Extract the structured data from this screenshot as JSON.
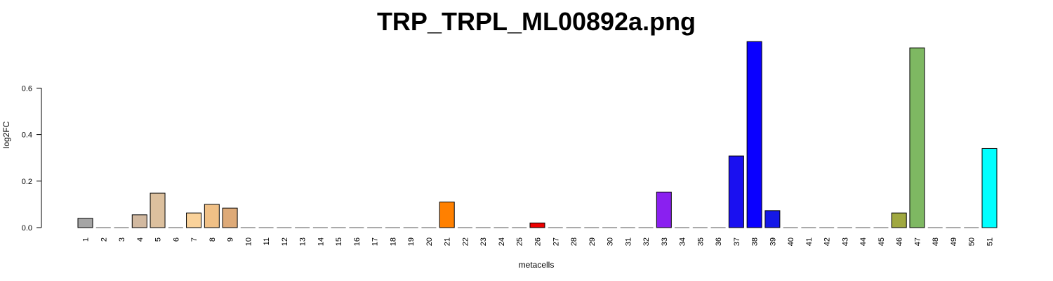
{
  "chart_data": {
    "type": "bar",
    "title": "TRP_TRPL_ML00892a.png",
    "xlabel": "metacells",
    "ylabel": "log2FC",
    "ylim": [
      0,
      0.8
    ],
    "yticks": [
      "0.0",
      "0.2",
      "0.4",
      "0.6"
    ],
    "ytick_values": [
      0,
      0.2,
      0.4,
      0.6
    ],
    "grid": false,
    "categories": [
      "1",
      "2",
      "3",
      "4",
      "5",
      "6",
      "7",
      "8",
      "9",
      "10",
      "11",
      "12",
      "13",
      "14",
      "15",
      "16",
      "17",
      "18",
      "19",
      "20",
      "21",
      "22",
      "23",
      "24",
      "25",
      "26",
      "27",
      "28",
      "29",
      "30",
      "31",
      "32",
      "33",
      "34",
      "35",
      "36",
      "37",
      "38",
      "39",
      "40",
      "41",
      "42",
      "43",
      "44",
      "45",
      "46",
      "47",
      "48",
      "49",
      "50",
      "51"
    ],
    "values": [
      0.04,
      0,
      0,
      0.055,
      0.148,
      0,
      0.063,
      0.1,
      0.084,
      0,
      0,
      0,
      0,
      0,
      0,
      0,
      0,
      0,
      0,
      0,
      0.11,
      0,
      0,
      0,
      0,
      0.02,
      0,
      0,
      0,
      0,
      0,
      0,
      0.153,
      0,
      0,
      0,
      0.308,
      0.8,
      0.073,
      0,
      0,
      0,
      0,
      0,
      0,
      0.063,
      0.773,
      0,
      0,
      0,
      0.34
    ],
    "colors": [
      "#a5a5a5",
      "#a5a5a5",
      "#a5a5a5",
      "#d2b9a0",
      "#dcc09e",
      "#dcc09e",
      "#fad29a",
      "#f0c086",
      "#deaa78",
      "#a5a5a5",
      "#a5a5a5",
      "#a5a5a5",
      "#a5a5a5",
      "#a5a5a5",
      "#a5a5a5",
      "#a5a5a5",
      "#a5a5a5",
      "#a5a5a5",
      "#a5a5a5",
      "#a5a5a5",
      "#ff8000",
      "#a5a5a5",
      "#a5a5a5",
      "#a5a5a5",
      "#a5a5a5",
      "#ee0000",
      "#a5a5a5",
      "#a5a5a5",
      "#a5a5a5",
      "#a5a5a5",
      "#a5a5a5",
      "#a5a5a5",
      "#8a20f0",
      "#a5a5a5",
      "#a5a5a5",
      "#a5a5a5",
      "#1a10f0",
      "#0a00ff",
      "#1418e8",
      "#a5a5a5",
      "#a5a5a5",
      "#a5a5a5",
      "#a5a5a5",
      "#a5a5a5",
      "#a5a5a5",
      "#a0a840",
      "#7eb862",
      "#a5a5a5",
      "#a5a5a5",
      "#a5a5a5",
      "#00ffff"
    ]
  }
}
